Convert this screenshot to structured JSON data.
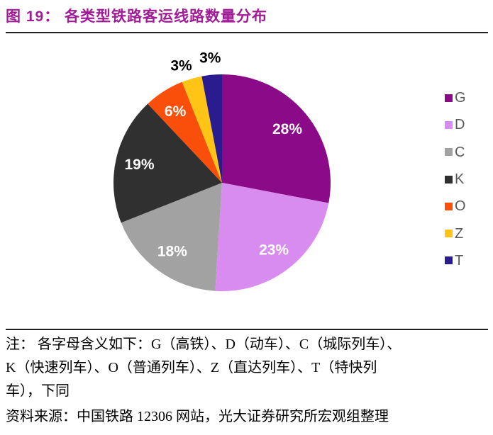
{
  "figure": {
    "title": "图 19：  各类型铁路客运线路数量分布"
  },
  "chart_data": {
    "type": "pie",
    "title": "各类型铁路客运线路数量分布",
    "unit": "%",
    "start_angle_deg": 0,
    "direction": "clockwise",
    "legend_position": "right",
    "grid": false,
    "categories": [
      "G",
      "D",
      "C",
      "K",
      "O",
      "Z",
      "T"
    ],
    "values": [
      28,
      23,
      18,
      19,
      6,
      3,
      3
    ],
    "slices": [
      {
        "label": "G",
        "value": 28,
        "display": "28%",
        "color": "#8B0A87",
        "label_placement": "inside",
        "label_offset": [
          0,
          0
        ]
      },
      {
        "label": "D",
        "value": 23,
        "display": "23%",
        "color": "#D98CEF",
        "label_placement": "inside",
        "label_offset": [
          0,
          0
        ]
      },
      {
        "label": "C",
        "value": 18,
        "display": "18%",
        "color": "#A2A2A2",
        "label_placement": "inside",
        "label_offset": [
          0,
          0
        ]
      },
      {
        "label": "K",
        "value": 19,
        "display": "19%",
        "color": "#303030",
        "label_placement": "inside",
        "label_offset": [
          0,
          0
        ]
      },
      {
        "label": "O",
        "value": 6,
        "display": "6%",
        "color": "#FA4E0B",
        "label_placement": "inside",
        "label_offset": [
          -2,
          0
        ]
      },
      {
        "label": "Z",
        "value": 3,
        "display": "3%",
        "color": "#FFC415",
        "label_placement": "outside",
        "label_offset": [
          -8,
          5
        ]
      },
      {
        "label": "T",
        "value": 3,
        "display": "3%",
        "color": "#2A1C8E",
        "label_placement": "outside",
        "label_offset": [
          0,
          0
        ]
      }
    ],
    "inside_label_color": "#FFFFFF",
    "outside_label_color": "#000000"
  },
  "legend": {
    "text_color": "#595959"
  },
  "notes": {
    "lines": [
      "注： 各字母含义如下：G（高铁）、D（动车）、C（城际列车）、",
      "K（快速列车）、O（普通列车）、Z（直达列车）、T（特快列",
      "车），下同"
    ]
  },
  "source": "资料来源：中国铁路 12306 网站，光大证券研究所宏观组整理",
  "colors": {
    "title": "#A01C96",
    "divider": "#1F1F1F",
    "background": "#FFFFFF"
  }
}
